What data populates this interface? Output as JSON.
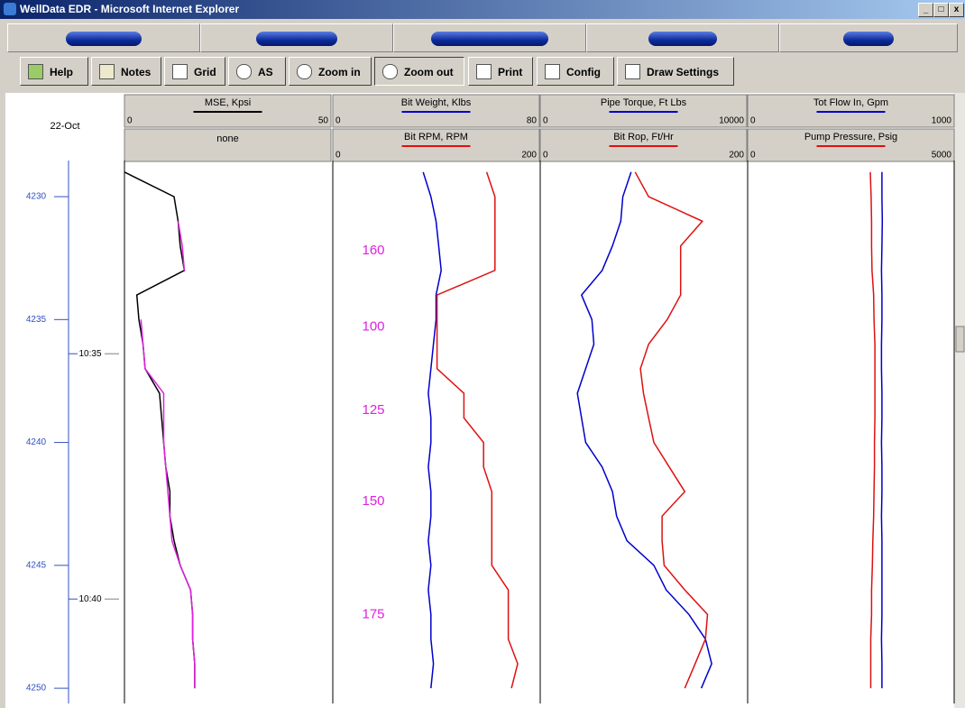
{
  "window_title": "WellData EDR - Microsoft Internet Explorer",
  "toolbar": [
    "Help",
    "Notes",
    "Grid",
    "AS",
    "Zoom in",
    "Zoom out",
    "Print",
    "Config",
    "Draw Settings"
  ],
  "chart_data": {
    "type": "log",
    "date": "22-Oct",
    "ylim": [
      4228.53,
      4250.62
    ],
    "yticks": [
      4230,
      4235,
      4240,
      4245,
      4250
    ],
    "time_ticks": [
      {
        "value": 4236.39,
        "label": "10:35"
      },
      {
        "value": 4246.37,
        "label": "10:40"
      }
    ],
    "depths": [
      4229,
      4230,
      4231,
      4232,
      4233,
      4234,
      4235,
      4236,
      4237,
      4238,
      4239,
      4240,
      4241,
      4242,
      4243,
      4244,
      4245,
      4246,
      4247,
      4248,
      4249,
      4250
    ],
    "tracks": [
      {
        "empty_slot": "none",
        "series": [
          {
            "name": "MSE, Kpsi",
            "color": "#000000",
            "xlim": [
              0,
              50
            ],
            "values": [
              0,
              12,
              13,
              13.5,
              14.5,
              3,
              3.5,
              4.5,
              5,
              8.5,
              9,
              9.5,
              10,
              11,
              11,
              12,
              13.5,
              16,
              16.5,
              16.5,
              17,
              17
            ]
          }
        ],
        "overlay": {
          "color": "#e020e0",
          "values": [
            null,
            null,
            13,
            14,
            14.5,
            null,
            4,
            4.5,
            5,
            9.5,
            9.5,
            9.5,
            10,
            10.5,
            11,
            11.5,
            13.5,
            16,
            16.5,
            16.5,
            17,
            17
          ]
        }
      },
      {
        "series": [
          {
            "name": "Bit Weight, Klbs",
            "color": "#0000cc",
            "xlim": [
              0,
              80
            ],
            "values": [
              35,
              38,
              40,
              41,
              42,
              40,
              40,
              39,
              38,
              37,
              38,
              38,
              37,
              38,
              38,
              37,
              38,
              37,
              38,
              38,
              39,
              38
            ]
          },
          {
            "name": "Bit RPM, RPM",
            "color": "#dd1111",
            "xlim": [
              0,
              200
            ],
            "values": [
              149,
              157,
              157,
              157,
              157,
              101,
              101,
              101,
              101,
              127,
              127,
              146,
              146,
              154,
              154,
              154,
              154,
              170,
              170,
              170,
              179,
              173
            ]
          }
        ]
      },
      {
        "series": [
          {
            "name": "Pipe Torque, Ft Lbs",
            "color": "#0000cc",
            "xlim": [
              0,
              10000
            ],
            "values": [
              4400,
              4000,
              3900,
              3500,
              3000,
              2000,
              2500,
              2600,
              2200,
              1800,
              2000,
              2200,
              3000,
              3500,
              3700,
              4200,
              5500,
              6100,
              7200,
              8000,
              8300,
              7800
            ]
          },
          {
            "name": "Bit Rop, Ft/Hr",
            "color": "#dd1111",
            "xlim": [
              0,
              200
            ],
            "values": [
              92,
              105,
              157,
              136,
              136,
              136,
              123,
              105,
              97,
              100,
              105,
              110,
              125,
              140,
              118,
              118,
              120,
              140,
              162,
              160,
              150,
              140
            ]
          }
        ]
      },
      {
        "series": [
          {
            "name": "Tot Flow In, Gpm",
            "color": "#0000cc",
            "xlim": [
              0,
              1000
            ],
            "values": [
              650,
              650,
              652,
              650,
              648,
              650,
              650,
              648,
              648,
              650,
              650,
              648,
              650,
              650,
              648,
              650,
              650,
              650,
              650,
              648,
              650,
              650
            ]
          },
          {
            "name": "Pump Pressure, Psig",
            "color": "#dd1111",
            "xlim": [
              0,
              5000
            ],
            "values": [
              2970,
              2990,
              3000,
              3000,
              3010,
              3050,
              3060,
              3080,
              3080,
              3080,
              3080,
              3070,
              3070,
              3060,
              3050,
              3030,
              3020,
              3000,
              3000,
              2980,
              2980,
              2980
            ]
          }
        ]
      }
    ],
    "annotations": [
      {
        "text": "160",
        "depth": 4232.2
      },
      {
        "text": "100",
        "depth": 4235.3
      },
      {
        "text": "125",
        "depth": 4238.7
      },
      {
        "text": "150",
        "depth": 4242.4
      },
      {
        "text": "175",
        "depth": 4247.0
      }
    ]
  }
}
